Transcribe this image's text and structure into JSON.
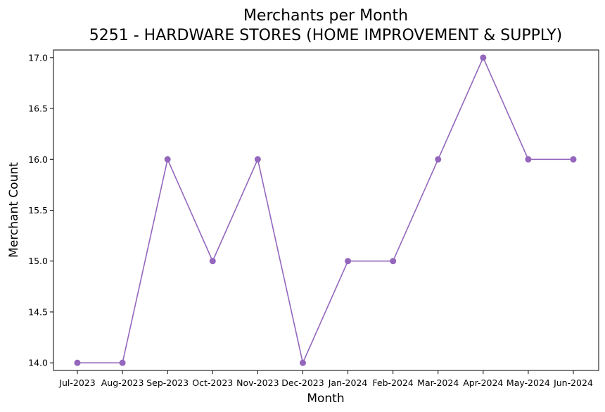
{
  "chart_data": {
    "type": "line",
    "title": "Merchants per Month",
    "subtitle": "5251 - HARDWARE STORES (HOME IMPROVEMENT & SUPPLY)",
    "xlabel": "Month",
    "ylabel": "Merchant Count",
    "categories": [
      "Jul-2023",
      "Aug-2023",
      "Sep-2023",
      "Oct-2023",
      "Nov-2023",
      "Dec-2023",
      "Jan-2024",
      "Feb-2024",
      "Mar-2024",
      "Apr-2024",
      "May-2024",
      "Jun-2024"
    ],
    "series": [
      {
        "values": [
          14,
          14,
          16,
          15,
          16,
          14,
          15,
          15,
          16,
          17,
          16,
          16
        ],
        "color": "#9467bd",
        "marker": "circle"
      }
    ],
    "yticks": [
      14.0,
      14.5,
      15.0,
      15.5,
      16.0,
      16.5,
      17.0
    ],
    "ytick_labels": [
      "14.0",
      "14.5",
      "15.0",
      "15.5",
      "16.0",
      "16.5",
      "17.0"
    ],
    "ylim": [
      13.925,
      17.075
    ],
    "grid": false,
    "legend": "none"
  }
}
